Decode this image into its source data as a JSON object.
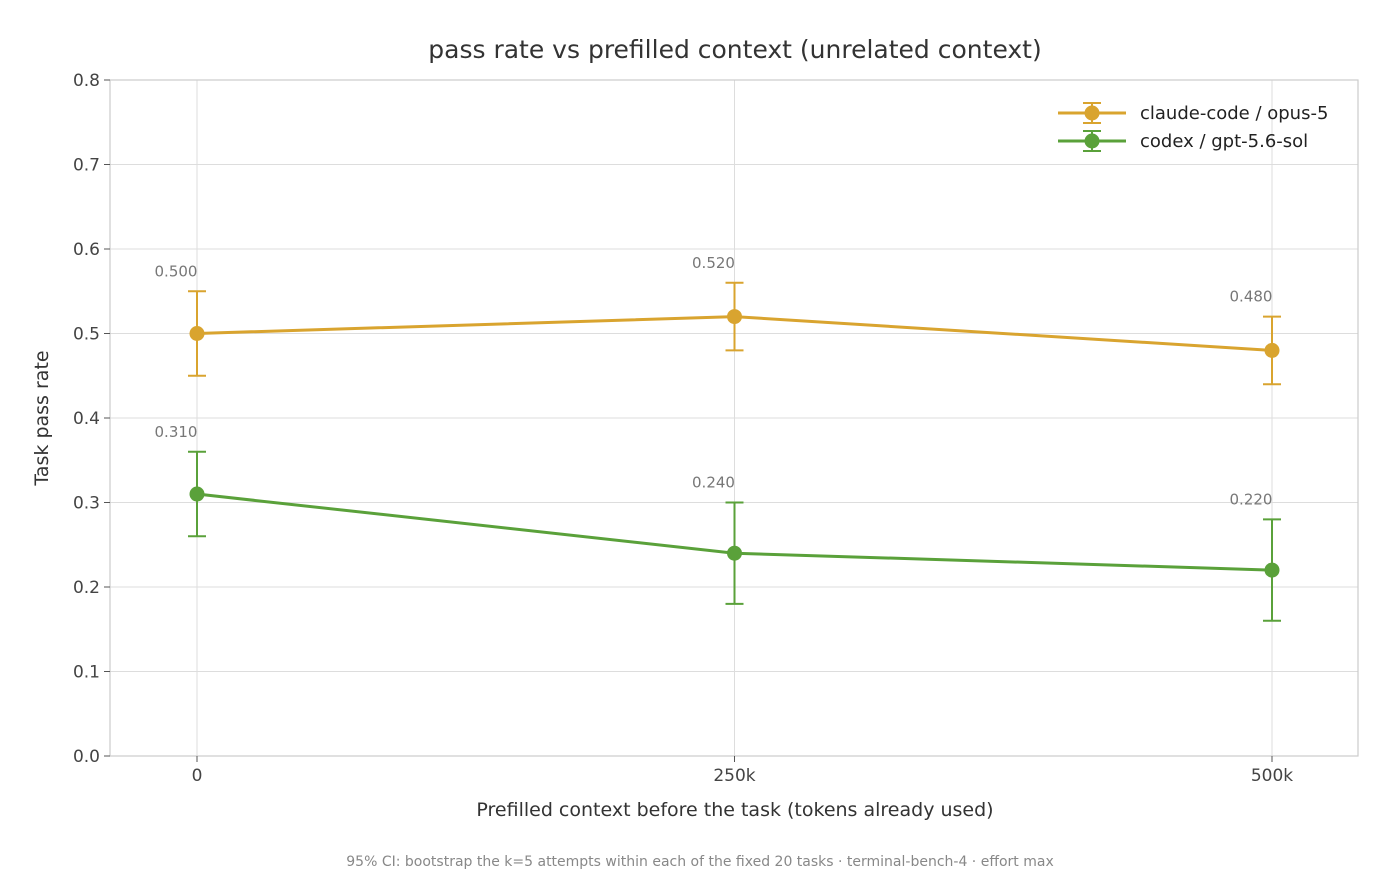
{
  "chart_data": {
    "type": "line",
    "title": "pass rate vs prefilled context (unrelated context)",
    "xlabel": "Prefilled context before the task (tokens already used)",
    "ylabel": "Task pass rate",
    "categories": [
      "0",
      "250k",
      "500k"
    ],
    "x": [
      0,
      250000,
      500000
    ],
    "ylim": [
      0.0,
      0.8
    ],
    "yticks": [
      "0.0",
      "0.1",
      "0.2",
      "0.3",
      "0.4",
      "0.5",
      "0.6",
      "0.7",
      "0.8"
    ],
    "grid": true,
    "legend_position": "top-right",
    "footnote": "95% CI: bootstrap the k=5 attempts within each of the fixed 20 tasks · terminal-bench-4 · effort max",
    "series": [
      {
        "name": "claude-code / opus-5",
        "color": "#D9A42F",
        "values": [
          0.5,
          0.52,
          0.48
        ],
        "ci_low": [
          0.45,
          0.48,
          0.44
        ],
        "ci_high": [
          0.55,
          0.56,
          0.52
        ],
        "labels": [
          "0.500",
          "0.520",
          "0.480"
        ]
      },
      {
        "name": "codex / gpt-5.6-sol",
        "color": "#5AA13A",
        "values": [
          0.31,
          0.24,
          0.22
        ],
        "ci_low": [
          0.26,
          0.18,
          0.16
        ],
        "ci_high": [
          0.36,
          0.3,
          0.28
        ],
        "labels": [
          "0.310",
          "0.240",
          "0.220"
        ]
      }
    ]
  }
}
